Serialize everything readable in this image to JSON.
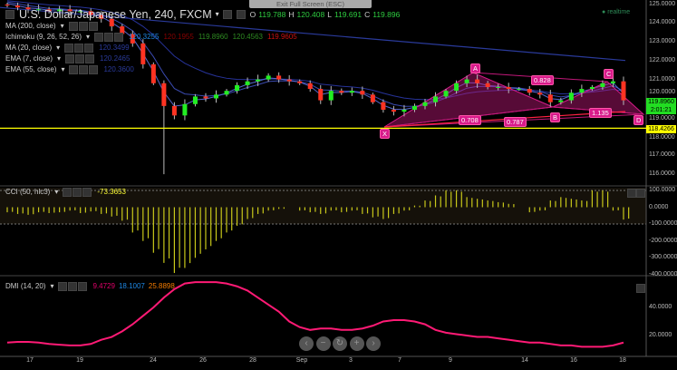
{
  "header": {
    "title": "U.S. Dollar/Japanese Yen, 240, FXCM",
    "open_label": "O",
    "open": "119.788",
    "high_label": "H",
    "high": "120.408",
    "low_label": "L",
    "low": "119.691",
    "close_label": "C",
    "close": "119.896"
  },
  "exit_fullscreen": "Exit Full Screen (ESC)",
  "realtime": "realtime",
  "indicators": [
    {
      "label": "MA (200, close)",
      "values": []
    },
    {
      "label": "Ichimoku (9, 26, 52, 26)",
      "values": [
        {
          "v": "120.3255",
          "c": "#1e88e5"
        },
        {
          "v": "120.1955",
          "c": "#8b0000"
        },
        {
          "v": "119.8960",
          "c": "#2e8b22"
        },
        {
          "v": "120.4563",
          "c": "#2e8b22"
        },
        {
          "v": "119.9605",
          "c": "#cc1111"
        }
      ]
    },
    {
      "label": "MA (20, close)",
      "values": [
        {
          "v": "120.3499",
          "c": "#2a3a9a"
        }
      ]
    },
    {
      "label": "EMA (7, close)",
      "values": [
        {
          "v": "120.2465",
          "c": "#2a3a9a"
        }
      ]
    },
    {
      "label": "EMA (55, close)",
      "values": [
        {
          "v": "120.3600",
          "c": "#2a3a9a"
        }
      ]
    }
  ],
  "price_axis": [
    "125.0000",
    "124.0000",
    "123.0000",
    "122.0000",
    "121.0000",
    "120.0000",
    "119.0000",
    "118.0000",
    "117.0000",
    "116.0000"
  ],
  "price_tags": {
    "last": "119.8960",
    "countdown": "2:01:21",
    "level": "118.4266",
    "last_color": "#22dd22",
    "level_color": "#ffff00"
  },
  "pattern": {
    "points": [
      "X",
      "A",
      "B",
      "C",
      "D"
    ],
    "ratios": [
      "0.708",
      "0.787",
      "0.828",
      "1.135"
    ],
    "color": "#c2187a"
  },
  "cci": {
    "label": "CCI (50, hlc3)",
    "value": "-73.3653",
    "axis": [
      "100.0000",
      "0.0000",
      "-100.0000",
      "-200.0000",
      "-300.0000",
      "-400.0000"
    ]
  },
  "dmi": {
    "label": "DMI (14, 20)",
    "values": [
      {
        "v": "9.4729",
        "c": "#e0006a"
      },
      {
        "v": "18.1007",
        "c": "#1e88e5"
      },
      {
        "v": "25.8898",
        "c": "#f57c00"
      }
    ],
    "axis": [
      "40.0000",
      "20.0000"
    ]
  },
  "x_axis": [
    "17",
    "19",
    "24",
    "26",
    "28",
    "Sep",
    "3",
    "7",
    "9",
    "14",
    "16",
    "18"
  ],
  "nav_buttons": [
    "‹",
    "−",
    "↻",
    "+",
    "›"
  ],
  "chart_data": [
    {
      "type": "candlestick",
      "title": "U.S. Dollar/Japanese Yen, 240, FXCM",
      "ylim": [
        115.9,
        125
      ],
      "close": [
        124.9,
        124.8,
        124.7,
        124.7,
        124.6,
        124.7,
        124.6,
        124.6,
        124.4,
        124.2,
        123.8,
        123.4,
        122.9,
        121.8,
        120.8,
        119.6,
        119.1,
        119.7,
        120.1,
        120.0,
        120.2,
        120.4,
        120.7,
        120.9,
        121.0,
        121.2,
        121.0,
        120.9,
        120.8,
        120.5,
        119.9,
        120.4,
        120.3,
        120.4,
        120.2,
        119.8,
        119.4,
        119.3,
        119.4,
        119.6,
        119.8,
        120.1,
        120.4,
        120.8,
        121.0,
        120.8,
        120.6,
        120.6,
        120.5,
        120.5,
        120.3,
        120.2,
        119.8,
        119.9,
        120.3,
        120.5,
        120.6,
        120.8,
        120.9,
        119.9
      ],
      "extreme_low": {
        "index": 15,
        "value": 116.0
      },
      "ma200": [
        124.8,
        122.0
      ],
      "horizontal_level": 118.4266
    },
    {
      "type": "bar",
      "title": "CCI (50, hlc3)",
      "ylim": [
        -420,
        110
      ],
      "values": [
        -30,
        -40,
        -45,
        -30,
        -35,
        -30,
        -20,
        -35,
        -25,
        -40,
        -55,
        -80,
        -150,
        -200,
        -270,
        -330,
        -390,
        -360,
        -300,
        -250,
        -200,
        -150,
        -110,
        -70,
        -40,
        -20,
        -10,
        0,
        -20,
        -30,
        -40,
        -20,
        -30,
        -20,
        -40,
        -60,
        -70,
        -40,
        -20,
        10,
        40,
        70,
        100,
        100,
        60,
        50,
        40,
        30,
        20,
        0,
        -30,
        -20,
        40,
        60,
        50,
        40,
        100,
        100,
        -20,
        -73.37
      ]
    },
    {
      "type": "line",
      "title": "DMI (14, 20)",
      "ylim": [
        0,
        60
      ],
      "color": "#ff1a75",
      "values": [
        15,
        15.5,
        15.5,
        15,
        14,
        13.5,
        13,
        13,
        14,
        17,
        19,
        23,
        28,
        34,
        40,
        47,
        53,
        57,
        58,
        58,
        58,
        57,
        55,
        52,
        47,
        42,
        37,
        30,
        26,
        24,
        25,
        25,
        24,
        24,
        25,
        27,
        30,
        31,
        31,
        30,
        28,
        24,
        22,
        21,
        20,
        19,
        19,
        18,
        17,
        16,
        15,
        15,
        14,
        13,
        13,
        12,
        12,
        12,
        13,
        15
      ]
    }
  ]
}
